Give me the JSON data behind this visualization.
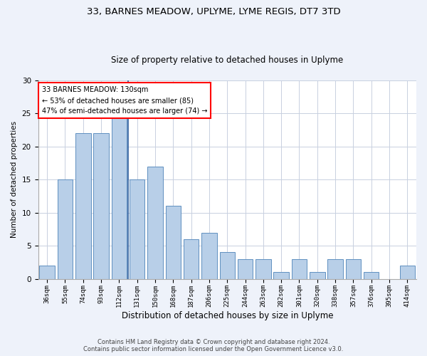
{
  "title1": "33, BARNES MEADOW, UPLYME, LYME REGIS, DT7 3TD",
  "title2": "Size of property relative to detached houses in Uplyme",
  "xlabel": "Distribution of detached houses by size in Uplyme",
  "ylabel": "Number of detached properties",
  "categories": [
    "36sqm",
    "55sqm",
    "74sqm",
    "93sqm",
    "112sqm",
    "131sqm",
    "150sqm",
    "168sqm",
    "187sqm",
    "206sqm",
    "225sqm",
    "244sqm",
    "263sqm",
    "282sqm",
    "301sqm",
    "320sqm",
    "338sqm",
    "357sqm",
    "376sqm",
    "395sqm",
    "414sqm"
  ],
  "values": [
    2,
    15,
    22,
    22,
    25,
    15,
    17,
    11,
    6,
    7,
    4,
    3,
    3,
    1,
    3,
    1,
    3,
    3,
    1,
    0,
    2
  ],
  "bar_color": "#b8cfe8",
  "bar_edge_color": "#6090c0",
  "annotation_lines": [
    "33 BARNES MEADOW: 130sqm",
    "← 53% of detached houses are smaller (85)",
    "47% of semi-detached houses are larger (74) →"
  ],
  "annotation_box_color": "white",
  "annotation_box_edge_color": "red",
  "vline_x": 4.5,
  "vline_color": "#3060a0",
  "ylim": [
    0,
    30
  ],
  "yticks": [
    0,
    5,
    10,
    15,
    20,
    25,
    30
  ],
  "footer1": "Contains HM Land Registry data © Crown copyright and database right 2024.",
  "footer2": "Contains public sector information licensed under the Open Government Licence v3.0.",
  "bg_color": "#eef2fa",
  "plot_bg_color": "white",
  "grid_color": "#c8d0e0",
  "title1_fontsize": 9.5,
  "title2_fontsize": 8.5,
  "xlabel_fontsize": 8.5,
  "ylabel_fontsize": 7.5,
  "xtick_fontsize": 6.5,
  "ytick_fontsize": 7.5,
  "annotation_fontsize": 7.0,
  "footer_fontsize": 6.0
}
